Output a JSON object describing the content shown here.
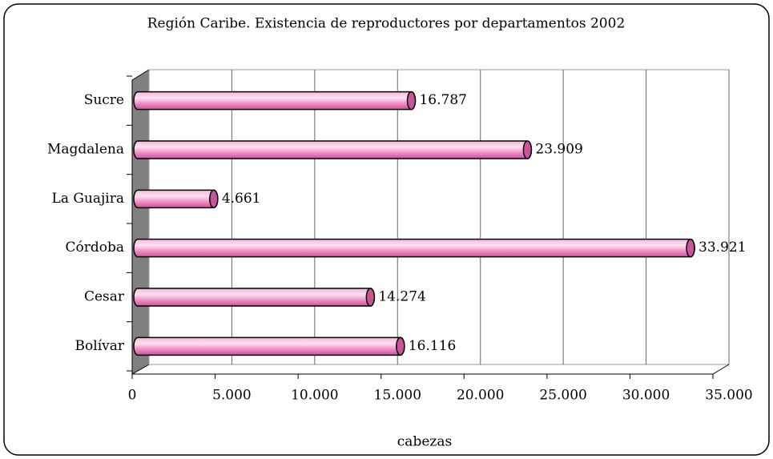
{
  "chart_data": {
    "type": "bar",
    "orientation": "horizontal",
    "title": "Región Caribe. Existencia de reproductores por departamentos 2002",
    "xlabel": "cabezas",
    "categories": [
      "Bolívar",
      "Cesar",
      "Córdoba",
      "La Guajira",
      "Magdalena",
      "Sucre"
    ],
    "values": [
      16116,
      14274,
      33921,
      4661,
      23909,
      16787
    ],
    "value_labels": [
      "16.116",
      "14.274",
      "33.921",
      "4.661",
      "23.909",
      "16.787"
    ],
    "color": "#f08cc8",
    "xlim": [
      0,
      35000
    ],
    "xticks": [
      0,
      {
        "value": 5000,
        "label": "5.000"
      },
      {
        "value": 10000,
        "label": "10.000"
      },
      {
        "value": 15000,
        "label": "15.000"
      },
      {
        "value": 20000,
        "label": "20.000"
      },
      {
        "value": 25000,
        "label": "25.000"
      },
      {
        "value": 30000,
        "label": "30.000"
      },
      {
        "value": 35000,
        "label": "35.000"
      }
    ],
    "grid": true
  }
}
